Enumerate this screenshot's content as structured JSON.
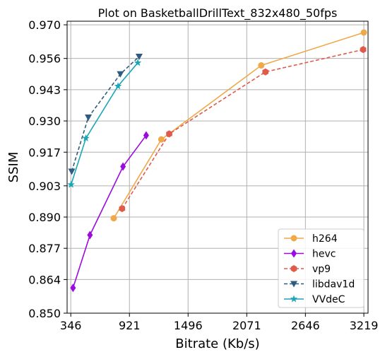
{
  "chart_data": {
    "type": "line",
    "title": "Plot on BasketballDrillText_832x480_50fps",
    "xlabel": "Bitrate (Kb/s)",
    "ylabel": "SSIM",
    "xlim": [
      310,
      3260
    ],
    "ylim": [
      0.85,
      0.9715
    ],
    "xticks": [
      346,
      921,
      1496,
      2071,
      2646,
      3219
    ],
    "yticks": [
      0.85,
      0.864,
      0.877,
      0.89,
      0.903,
      0.917,
      0.93,
      0.943,
      0.956,
      0.97
    ],
    "ytick_labels": [
      "0.850",
      "0.864",
      "0.877",
      "0.890",
      "0.903",
      "0.917",
      "0.930",
      "0.943",
      "0.956",
      "0.970"
    ],
    "grid": true,
    "legend_position": "bottom-right",
    "series": [
      {
        "name": "h264",
        "color": "#f0a848",
        "marker": "circle",
        "dash": "solid",
        "x": [
          767,
          1234,
          2213,
          3219
        ],
        "y": [
          0.8895,
          0.9223,
          0.9531,
          0.9668
        ]
      },
      {
        "name": "hevc",
        "color": "#9b0be0",
        "marker": "diamond",
        "dash": "solid",
        "x": [
          368,
          534,
          858,
          1085
        ],
        "y": [
          0.8605,
          0.8825,
          0.911,
          0.924
        ]
      },
      {
        "name": "vp9",
        "color": "#e05a4a",
        "marker": "hexagon",
        "dash": "dashed",
        "x": [
          849,
          1311,
          2254,
          3212
        ],
        "y": [
          0.8935,
          0.9246,
          0.9504,
          0.9597
        ]
      },
      {
        "name": "libdav1d",
        "color": "#2e5b7f",
        "marker": "triangle-down",
        "dash": "dashed",
        "x": [
          355,
          518,
          832,
          1016
        ],
        "y": [
          0.909,
          0.9315,
          0.9495,
          0.9568
        ]
      },
      {
        "name": "VVdeC",
        "color": "#1aa6b5",
        "marker": "star",
        "dash": "solid",
        "x": [
          349,
          494,
          809,
          1003
        ],
        "y": [
          0.9035,
          0.9228,
          0.9445,
          0.9542
        ]
      }
    ]
  }
}
